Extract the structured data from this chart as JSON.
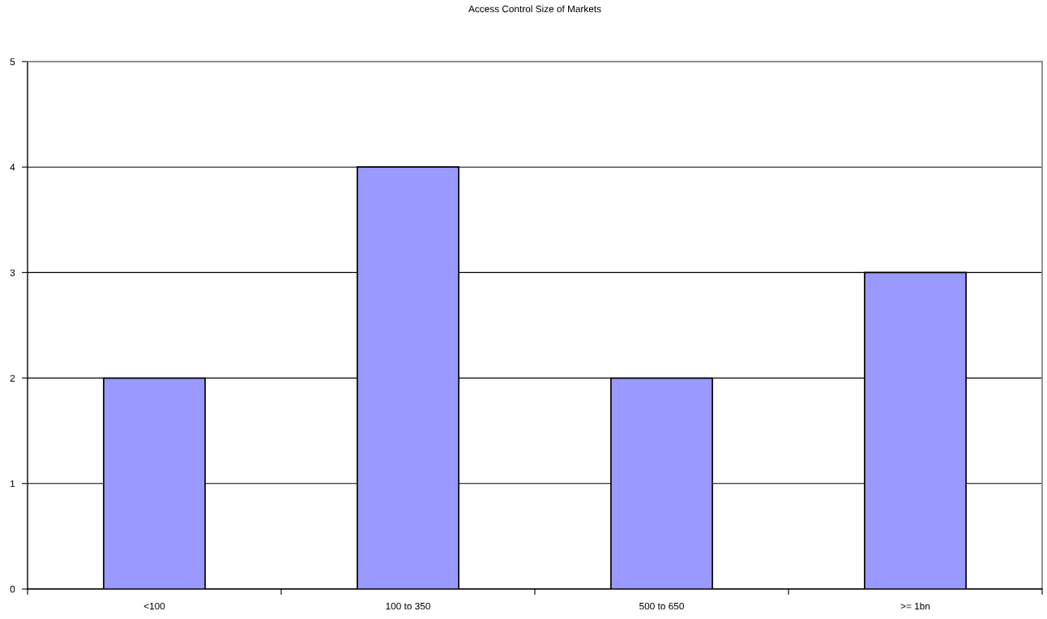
{
  "chart_data": {
    "type": "bar",
    "title": "Access Control Size of Markets",
    "categories": [
      "<100",
      "100 to 350",
      "500 to 650",
      ">= 1bn"
    ],
    "values": [
      2,
      4,
      2,
      3
    ],
    "color": "#9999ff",
    "ylim": [
      0,
      5
    ],
    "yticks": [
      0,
      1,
      2,
      3,
      4,
      5
    ],
    "grid": "y"
  }
}
